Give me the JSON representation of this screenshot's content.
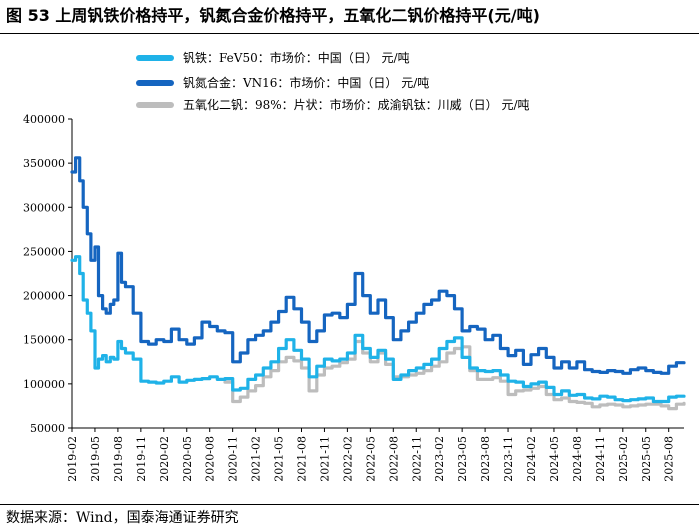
{
  "title": "图 53  上周钒铁价格持平，钒氮合金价格持平，五氧化二钒价格持平(元/吨)",
  "source": "数据来源：Wind，国泰海通证券研究",
  "colors": {
    "series_fev50": "#1fb2e8",
    "series_vn16": "#1565c0",
    "series_v2o5": "#bdbdbd",
    "axis": "#000000"
  },
  "chart_data": {
    "type": "line",
    "ylim": [
      50000,
      400000
    ],
    "yticks": [
      50000,
      100000,
      150000,
      200000,
      250000,
      300000,
      350000,
      400000
    ],
    "ytick_labels": [
      "50000",
      "100000",
      "150000",
      "200000",
      "250000",
      "300000",
      "350000",
      "400000"
    ],
    "xlim": [
      "2019-02",
      "2025-10"
    ],
    "xticks": [
      "2019-02",
      "2019-05",
      "2019-08",
      "2019-11",
      "2020-02",
      "2020-05",
      "2020-08",
      "2020-11",
      "2021-02",
      "2021-05",
      "2021-08",
      "2021-11",
      "2022-02",
      "2022-05",
      "2022-08",
      "2022-11",
      "2023-02",
      "2023-05",
      "2023-08",
      "2023-11",
      "2024-02",
      "2024-05",
      "2024-08",
      "2024-11",
      "2025-02",
      "2025-05",
      "2025-08"
    ],
    "grid": false,
    "legend_position": "top-left",
    "series": [
      {
        "name": "钒铁：FeV50：市场价：中国（日） 元/吨",
        "x": [
          "2019-02",
          "2019-02-15",
          "2019-03",
          "2019-03-15",
          "2019-04",
          "2019-04-15",
          "2019-05",
          "2019-05-15",
          "2019-06",
          "2019-06-15",
          "2019-07",
          "2019-07-15",
          "2019-08",
          "2019-08-15",
          "2019-09",
          "2019-10",
          "2019-11",
          "2019-12",
          "2020-01",
          "2020-02",
          "2020-03",
          "2020-04",
          "2020-05",
          "2020-06",
          "2020-07",
          "2020-08",
          "2020-09",
          "2020-10",
          "2020-11",
          "2020-12",
          "2021-01",
          "2021-02",
          "2021-03",
          "2021-04",
          "2021-05",
          "2021-06",
          "2021-07",
          "2021-08",
          "2021-09",
          "2021-10",
          "2021-11",
          "2021-12",
          "2022-01",
          "2022-02",
          "2022-03",
          "2022-04",
          "2022-05",
          "2022-06",
          "2022-07",
          "2022-08",
          "2022-09",
          "2022-10",
          "2022-11",
          "2022-12",
          "2023-01",
          "2023-02",
          "2023-03",
          "2023-04",
          "2023-05",
          "2023-06",
          "2023-07",
          "2023-08",
          "2023-09",
          "2023-10",
          "2023-11",
          "2023-12",
          "2024-01",
          "2024-02",
          "2024-03",
          "2024-04",
          "2024-05",
          "2024-06",
          "2024-07",
          "2024-08",
          "2024-09",
          "2024-10",
          "2024-11",
          "2024-12",
          "2025-01",
          "2025-02",
          "2025-03",
          "2025-04",
          "2025-05",
          "2025-06",
          "2025-07",
          "2025-08",
          "2025-09",
          "2025-10"
        ],
        "values": [
          240000,
          244000,
          225000,
          195000,
          180000,
          160000,
          118000,
          128000,
          132000,
          125000,
          130000,
          128000,
          148000,
          140000,
          135000,
          128000,
          103000,
          102000,
          101000,
          103000,
          108000,
          102000,
          104000,
          105000,
          106000,
          108000,
          105000,
          106000,
          93000,
          95000,
          105000,
          110000,
          118000,
          125000,
          140000,
          150000,
          138000,
          128000,
          108000,
          120000,
          128000,
          126000,
          128000,
          135000,
          155000,
          140000,
          130000,
          138000,
          128000,
          105000,
          110000,
          115000,
          118000,
          122000,
          128000,
          140000,
          148000,
          152000,
          130000,
          118000,
          115000,
          114000,
          115000,
          110000,
          103000,
          102000,
          97000,
          100000,
          102000,
          96000,
          88000,
          92000,
          87000,
          88000,
          84000,
          83000,
          86000,
          85000,
          82000,
          81000,
          82000,
          83000,
          84000,
          80000,
          80000,
          85000,
          86000,
          86000
        ]
      },
      {
        "name": "钒氮合金：VN16：市场价：中国（日） 元/吨",
        "x": [
          "2019-02",
          "2019-02-15",
          "2019-03",
          "2019-03-15",
          "2019-04",
          "2019-04-15",
          "2019-05",
          "2019-05-15",
          "2019-06",
          "2019-06-15",
          "2019-07",
          "2019-07-15",
          "2019-08",
          "2019-08-15",
          "2019-09",
          "2019-10",
          "2019-11",
          "2019-12",
          "2020-01",
          "2020-02",
          "2020-03",
          "2020-04",
          "2020-05",
          "2020-06",
          "2020-07",
          "2020-08",
          "2020-09",
          "2020-10",
          "2020-11",
          "2020-12",
          "2021-01",
          "2021-02",
          "2021-03",
          "2021-04",
          "2021-05",
          "2021-06",
          "2021-07",
          "2021-08",
          "2021-09",
          "2021-10",
          "2021-11",
          "2021-12",
          "2022-01",
          "2022-02",
          "2022-03",
          "2022-04",
          "2022-05",
          "2022-06",
          "2022-07",
          "2022-08",
          "2022-09",
          "2022-10",
          "2022-11",
          "2022-12",
          "2023-01",
          "2023-02",
          "2023-03",
          "2023-04",
          "2023-05",
          "2023-06",
          "2023-07",
          "2023-08",
          "2023-09",
          "2023-10",
          "2023-11",
          "2023-12",
          "2024-01",
          "2024-02",
          "2024-03",
          "2024-04",
          "2024-05",
          "2024-06",
          "2024-07",
          "2024-08",
          "2024-09",
          "2024-10",
          "2024-11",
          "2024-12",
          "2025-01",
          "2025-02",
          "2025-03",
          "2025-04",
          "2025-05",
          "2025-06",
          "2025-07",
          "2025-08",
          "2025-09",
          "2025-10"
        ],
        "values": [
          340000,
          356000,
          330000,
          300000,
          270000,
          240000,
          255000,
          200000,
          185000,
          180000,
          190000,
          195000,
          248000,
          215000,
          210000,
          180000,
          148000,
          145000,
          150000,
          148000,
          162000,
          150000,
          145000,
          152000,
          170000,
          165000,
          160000,
          158000,
          125000,
          135000,
          150000,
          155000,
          160000,
          170000,
          182000,
          198000,
          185000,
          170000,
          148000,
          160000,
          178000,
          180000,
          175000,
          190000,
          225000,
          200000,
          180000,
          195000,
          175000,
          150000,
          160000,
          170000,
          180000,
          190000,
          195000,
          205000,
          200000,
          185000,
          160000,
          165000,
          162000,
          150000,
          155000,
          140000,
          132000,
          138000,
          122000,
          133000,
          140000,
          130000,
          118000,
          125000,
          118000,
          125000,
          116000,
          114000,
          113000,
          115000,
          114000,
          112000,
          116000,
          118000,
          115000,
          113000,
          112000,
          120000,
          124000,
          124000
        ]
      },
      {
        "name": "五氧化二钒：98%：片状：市场价：成渝钒钛：川威（日） 元/吨",
        "x": [
          "2020-10",
          "2020-11",
          "2020-12",
          "2021-01",
          "2021-02",
          "2021-03",
          "2021-04",
          "2021-05",
          "2021-06",
          "2021-07",
          "2021-08",
          "2021-09",
          "2021-10",
          "2021-11",
          "2021-12",
          "2022-01",
          "2022-02",
          "2022-03",
          "2022-04",
          "2022-05",
          "2022-06",
          "2022-07",
          "2022-08",
          "2022-09",
          "2022-10",
          "2022-11",
          "2022-12",
          "2023-01",
          "2023-02",
          "2023-03",
          "2023-04",
          "2023-05",
          "2023-06",
          "2023-07",
          "2023-08",
          "2023-09",
          "2023-10",
          "2023-11",
          "2023-12",
          "2024-01",
          "2024-02",
          "2024-03",
          "2024-04",
          "2024-05",
          "2024-06",
          "2024-07",
          "2024-08",
          "2024-09",
          "2024-10",
          "2024-11",
          "2024-12",
          "2025-01",
          "2025-02",
          "2025-03",
          "2025-04",
          "2025-05",
          "2025-06",
          "2025-07",
          "2025-08",
          "2025-09",
          "2025-10"
        ],
        "values": [
          102000,
          80000,
          85000,
          92000,
          98000,
          108000,
          115000,
          125000,
          130000,
          126000,
          118000,
          92000,
          110000,
          118000,
          120000,
          124000,
          128000,
          148000,
          135000,
          125000,
          135000,
          122000,
          108000,
          108000,
          110000,
          112000,
          115000,
          120000,
          125000,
          135000,
          140000,
          142000,
          115000,
          105000,
          105000,
          107000,
          103000,
          88000,
          92000,
          93000,
          95000,
          97000,
          88000,
          82000,
          84000,
          80000,
          79000,
          78000,
          74000,
          76000,
          77000,
          76000,
          74000,
          75000,
          76000,
          77000,
          77000,
          75000,
          72000,
          77000,
          78000
        ]
      }
    ]
  }
}
